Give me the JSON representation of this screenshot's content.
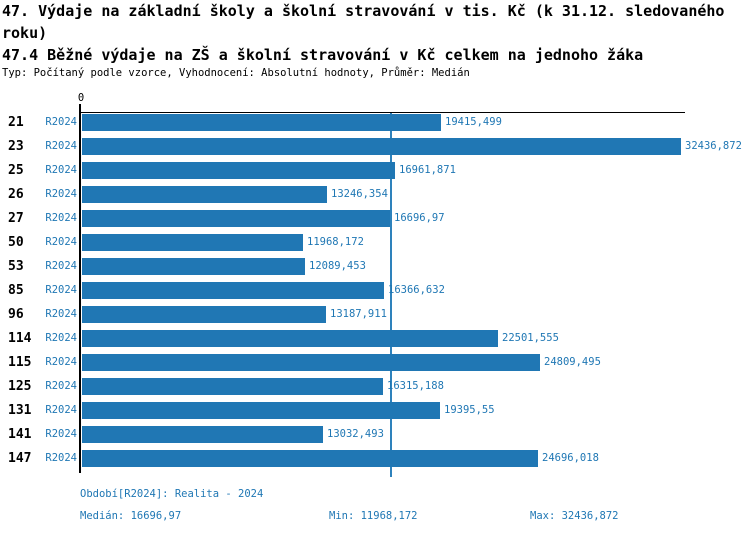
{
  "title": {
    "line1": "47. Výdaje na základní školy a školní stravování v tis. Kč (k 31.12. sledovaného",
    "line2": "roku)",
    "subtitle": "47.4 Běžné výdaje na ZŠ a školní stravování v Kč celkem na jednoho žáka",
    "meta": "Typ: Počítaný podle vzorce, Vyhodnocení: Absolutní hodnoty, Průměr: Medián"
  },
  "chart_data": {
    "type": "bar",
    "orientation": "horizontal",
    "title": "47.4 Běžné výdaje na ZŠ a školní stravování v Kč celkem na jednoho žáka",
    "zero_label": "0",
    "series_name": "R2024",
    "categories": [
      "21",
      "23",
      "25",
      "26",
      "27",
      "50",
      "53",
      "85",
      "96",
      "114",
      "115",
      "125",
      "131",
      "141",
      "147"
    ],
    "values": [
      19415.499,
      32436.872,
      16961.871,
      13246.354,
      16696.97,
      11968.172,
      12089.453,
      16366.632,
      13187.911,
      22501.555,
      24809.495,
      16315.188,
      19395.55,
      13032.493,
      24696.018
    ],
    "value_labels": [
      "19415,499",
      "32436,872",
      "16961,871",
      "13246,354",
      "16696,97",
      "11968,172",
      "12089,453",
      "16366,632",
      "13187,911",
      "22501,555",
      "24809,495",
      "16315,188",
      "19395,55",
      "13032,493",
      "24696,018"
    ],
    "xlim": [
      0,
      32436.872
    ],
    "median": 16696.97,
    "grid": false,
    "legend_position": "none",
    "bar_color": "#2077B4",
    "median_line_color": "#2E82BC",
    "label_color": "#1F77B4"
  },
  "footer": {
    "period": "Období[R2024]: Realita - 2024",
    "median": "Medián: 16696,97",
    "min": "Min: 11968,172",
    "max": "Max: 32436,872"
  }
}
